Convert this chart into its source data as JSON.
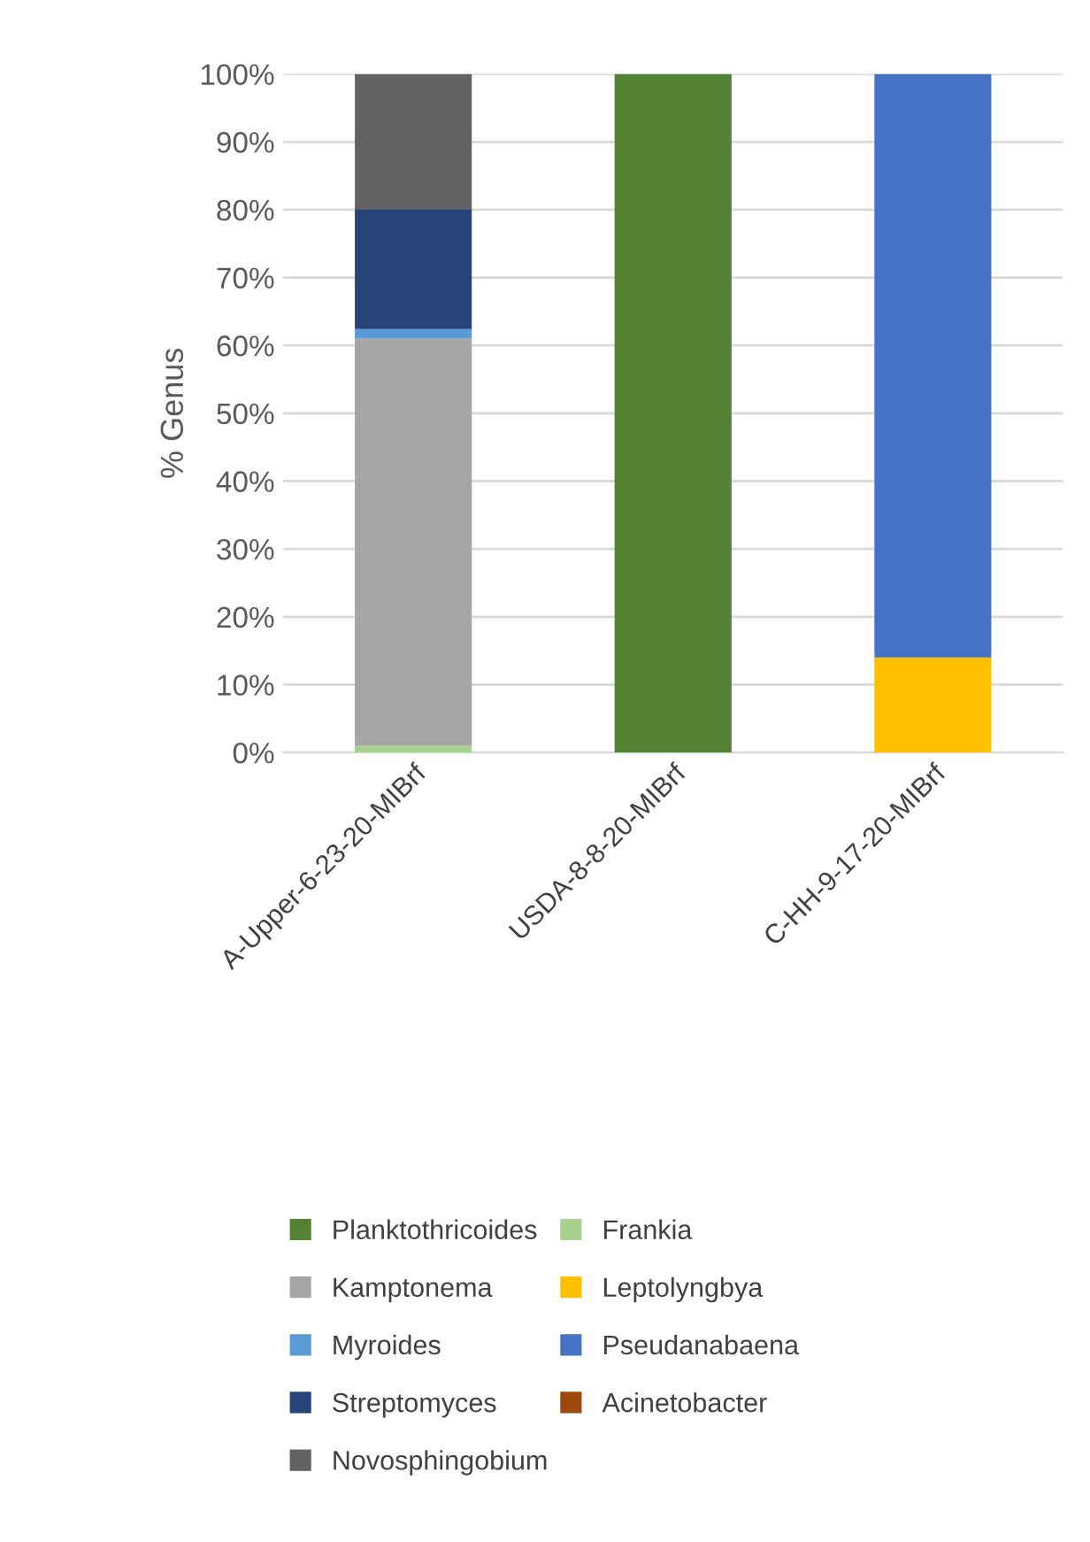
{
  "chart_data": {
    "type": "bar",
    "stacked": true,
    "ylabel": "% Genus",
    "categories": [
      "A-Upper-6-23-20-MIBrf",
      "USDA-8-8-20-MIBrf",
      "C-HH-9-17-20-MIBrf"
    ],
    "series": [
      {
        "name": "Planktothricoides",
        "color": "#548235",
        "values": [
          0,
          100,
          0
        ]
      },
      {
        "name": "Frankia",
        "color": "#a9d18e",
        "values": [
          1,
          0,
          0
        ]
      },
      {
        "name": "Kamptonema",
        "color": "#a5a5a5",
        "values": [
          60,
          0,
          0
        ]
      },
      {
        "name": "Leptolyngbya",
        "color": "#ffc000",
        "values": [
          0,
          0,
          14
        ]
      },
      {
        "name": "Myroides",
        "color": "#5b9bd5",
        "values": [
          1.4,
          0,
          0
        ]
      },
      {
        "name": "Pseudanabaena",
        "color": "#4472c4",
        "values": [
          0,
          0,
          86
        ]
      },
      {
        "name": "Streptomyces",
        "color": "#264478",
        "values": [
          17.6,
          0,
          0
        ]
      },
      {
        "name": "Acinetobacter",
        "color": "#9e480e",
        "values": [
          0,
          0,
          0
        ]
      },
      {
        "name": "Novosphingobium",
        "color": "#636363",
        "values": [
          20,
          0,
          0
        ]
      }
    ],
    "ylim": [
      0,
      100
    ],
    "yticks": [
      {
        "value": 0,
        "label": "0%"
      },
      {
        "value": 10,
        "label": "10%"
      },
      {
        "value": 20,
        "label": "20%"
      },
      {
        "value": 30,
        "label": "30%"
      },
      {
        "value": 40,
        "label": "40%"
      },
      {
        "value": 50,
        "label": "50%"
      },
      {
        "value": 60,
        "label": "60%"
      },
      {
        "value": 70,
        "label": "70%"
      },
      {
        "value": 80,
        "label": "80%"
      },
      {
        "value": 90,
        "label": "90%"
      },
      {
        "value": 100,
        "label": "100%"
      }
    ],
    "grid": "y",
    "legend": "bottom"
  }
}
